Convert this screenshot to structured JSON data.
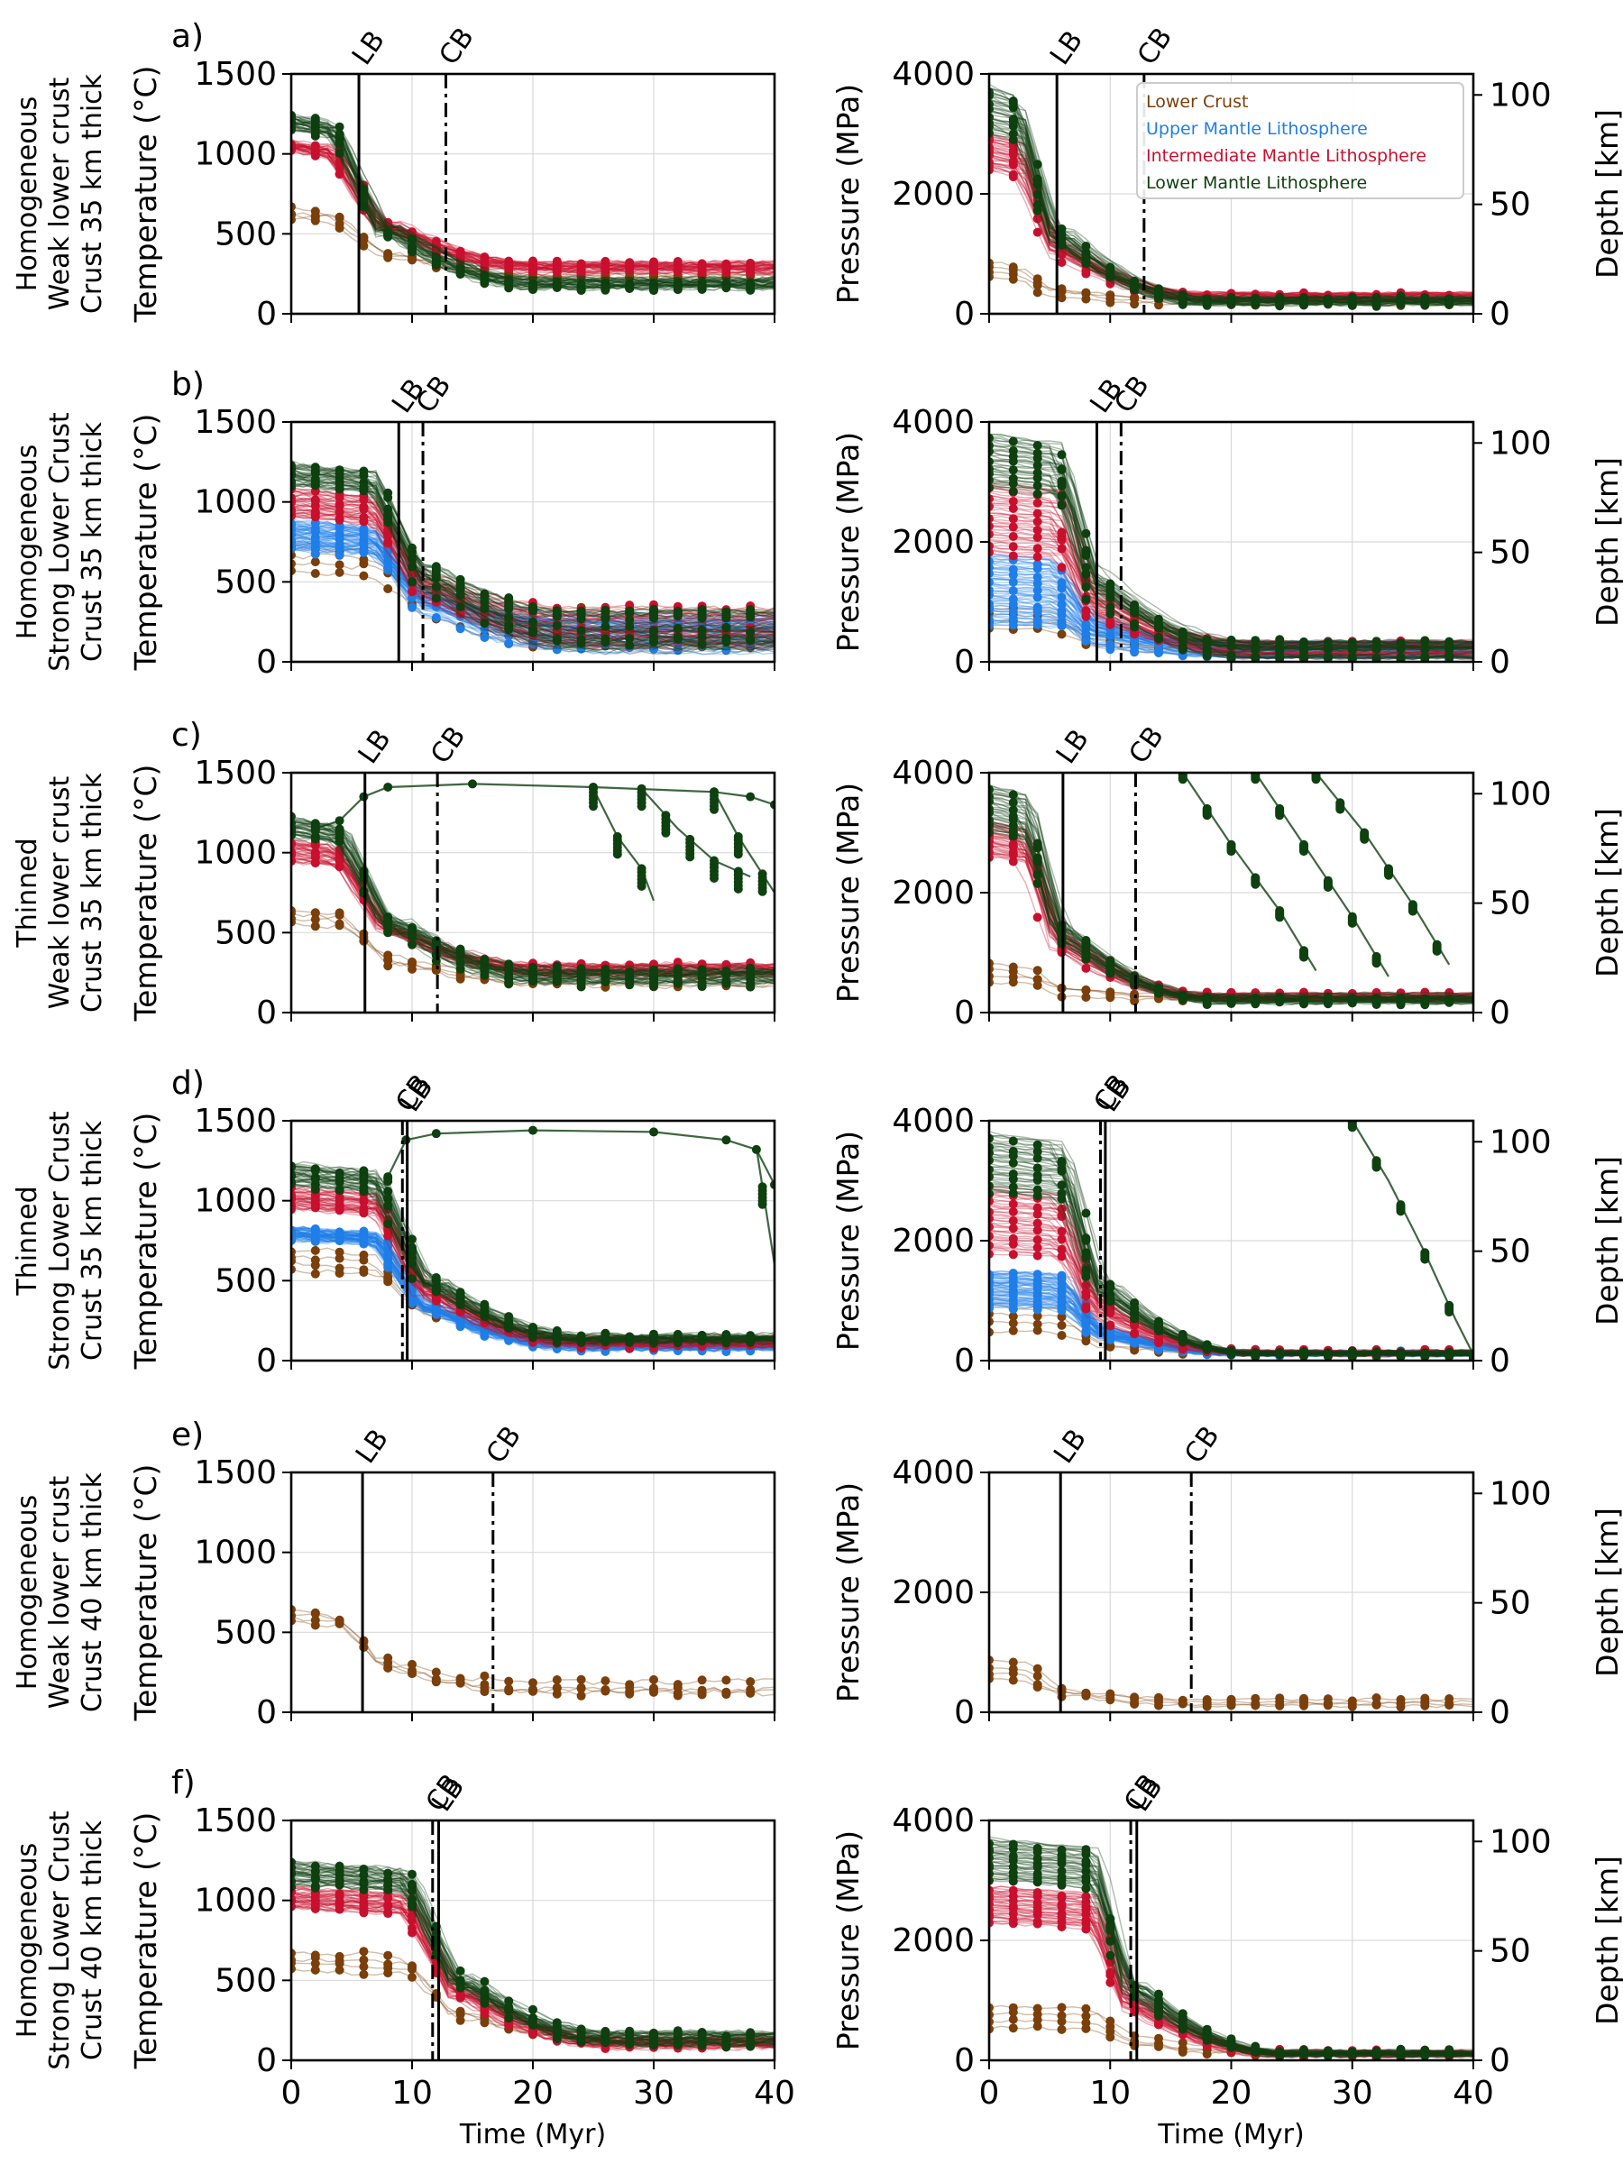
{
  "colors": {
    "lower_crust": "#7a3f0a",
    "upper_mantle": "#1f7ee8",
    "intermediate_mantle": "#c8102e",
    "lower_mantle": "#0f4010"
  },
  "axes_text": {
    "temperature_ylabel": "Temperature (°C)",
    "pressure_ylabel": "Pressure (MPa)",
    "depth_ylabel": "Depth [km]",
    "xlabel": "Time (Myr)",
    "lb_tag": "LB",
    "cb_tag": "CB"
  },
  "legend": {
    "placement": "upper right of panel a pressure plot",
    "entries": [
      {
        "label": "Lower Crust",
        "color": "#7a3f0a"
      },
      {
        "label": "Upper Mantle Lithosphere",
        "color": "#1f7ee8"
      },
      {
        "label": "Intermediate Mantle Lithosphere",
        "color": "#c8102e"
      },
      {
        "label": "Lower Mantle Lithosphere",
        "color": "#0f4010"
      }
    ]
  },
  "chart_data": [
    {
      "type": "line",
      "panel": "a)",
      "row_label": [
        "Homogeneous",
        "Weak lower crust",
        "Crust 35 km thick"
      ],
      "xlim": [
        0,
        40
      ],
      "temp_ylim": [
        0,
        1500
      ],
      "pres_ylim": [
        0,
        4000
      ],
      "depth_ticks": [
        0,
        50,
        100
      ],
      "lb": 5.6,
      "cb": 12.8,
      "series": [
        "lower_crust",
        "intermediate_mantle",
        "lower_mantle"
      ],
      "temp_start": {
        "lower_crust": [
          650,
          600,
          560
        ],
        "upper_mantle": null,
        "intermediate_mantle": [
          1020,
          1080
        ],
        "lower_mantle": [
          1150,
          1240
        ]
      },
      "temp_end": {
        "lower_crust": [
          200,
          260
        ],
        "upper_mantle": null,
        "intermediate_mantle": [
          260,
          320
        ],
        "lower_mantle": [
          160,
          220
        ]
      },
      "pres_start": {
        "lower_crust": [
          850,
          600
        ],
        "upper_mantle": null,
        "intermediate_mantle": [
          2400,
          3000
        ],
        "lower_mantle": [
          3000,
          3800
        ]
      },
      "pres_end": {
        "lower_crust": [
          150,
          250
        ],
        "upper_mantle": null,
        "intermediate_mantle": [
          200,
          350
        ],
        "lower_mantle": [
          150,
          280
        ]
      }
    },
    {
      "type": "line",
      "panel": "b)",
      "row_label": [
        "Homogeneous",
        "Strong Lower Crust",
        "Crust 35 km thick"
      ],
      "xlim": [
        0,
        40
      ],
      "temp_ylim": [
        0,
        1500
      ],
      "pres_ylim": [
        0,
        4000
      ],
      "depth_ticks": [
        0,
        50,
        100
      ],
      "lb": 8.9,
      "cb": 10.9,
      "series": [
        "lower_crust",
        "upper_mantle",
        "intermediate_mantle",
        "lower_mantle"
      ],
      "temp_start": {
        "lower_crust": [
          560,
          720
        ],
        "upper_mantle": [
          700,
          880
        ],
        "intermediate_mantle": [
          900,
          1080
        ],
        "lower_mantle": [
          1100,
          1240
        ]
      },
      "temp_end": {
        "lower_crust": [
          40,
          330
        ],
        "upper_mantle": [
          60,
          300
        ],
        "intermediate_mantle": [
          80,
          340
        ],
        "lower_mantle": [
          60,
          320
        ]
      },
      "pres_start": {
        "lower_crust": [
          550,
          900
        ],
        "upper_mantle": [
          600,
          1800
        ],
        "intermediate_mantle": [
          1800,
          3000
        ],
        "lower_mantle": [
          2900,
          3800
        ]
      },
      "pres_end": {
        "lower_crust": [
          60,
          330
        ],
        "upper_mantle": [
          60,
          350
        ],
        "intermediate_mantle": [
          60,
          350
        ],
        "lower_mantle": [
          60,
          350
        ]
      }
    },
    {
      "type": "line",
      "panel": "c)",
      "row_label": [
        "Thinned",
        "Weak lower crust",
        "Crust 35 km thick"
      ],
      "xlim": [
        0,
        40
      ],
      "temp_ylim": [
        0,
        1500
      ],
      "pres_ylim": [
        0,
        4000
      ],
      "depth_ticks": [
        0,
        50,
        100
      ],
      "lb": 6.1,
      "cb": 12.1,
      "series": [
        "lower_crust",
        "intermediate_mantle",
        "lower_mantle"
      ],
      "temp_start": {
        "lower_crust": [
          560,
          650
        ],
        "upper_mantle": null,
        "intermediate_mantle": [
          950,
          1080
        ],
        "lower_mantle": [
          1100,
          1220
        ]
      },
      "temp_end": {
        "lower_crust": [
          160,
          240
        ],
        "upper_mantle": null,
        "intermediate_mantle": [
          230,
          300
        ],
        "lower_mantle": [
          180,
          280
        ]
      },
      "pres_start": {
        "lower_crust": [
          500,
          800
        ],
        "upper_mantle": null,
        "intermediate_mantle": [
          2600,
          3200
        ],
        "lower_mantle": [
          3000,
          3800
        ]
      },
      "pres_end": {
        "lower_crust": [
          150,
          280
        ],
        "upper_mantle": null,
        "intermediate_mantle": [
          200,
          320
        ],
        "lower_mantle": [
          150,
          320
        ]
      },
      "hot_path_temp": [
        [
          2,
          1150
        ],
        [
          4,
          1200
        ],
        [
          6,
          1350
        ],
        [
          8,
          1410
        ],
        [
          15,
          1430
        ],
        [
          25,
          1410
        ],
        [
          35,
          1380
        ],
        [
          38,
          1350
        ],
        [
          40,
          1300
        ]
      ],
      "escape_temp": [
        [
          [
            25,
            1400
          ],
          [
            27,
            1100
          ],
          [
            29,
            900
          ],
          [
            30,
            700
          ]
        ],
        [
          [
            29,
            1400
          ],
          [
            32,
            1150
          ],
          [
            35,
            950
          ],
          [
            38,
            850
          ]
        ],
        [
          [
            35,
            1380
          ],
          [
            37,
            1100
          ],
          [
            40,
            750
          ]
        ]
      ],
      "escape_pres": [
        [
          [
            16,
            4000
          ],
          [
            20,
            2800
          ],
          [
            24,
            1700
          ],
          [
            27,
            700
          ]
        ],
        [
          [
            22,
            4000
          ],
          [
            26,
            2800
          ],
          [
            30,
            1600
          ],
          [
            33,
            600
          ]
        ],
        [
          [
            27,
            4000
          ],
          [
            31,
            3000
          ],
          [
            35,
            1800
          ],
          [
            38,
            800
          ]
        ]
      ]
    },
    {
      "type": "line",
      "panel": "d)",
      "row_label": [
        "Thinned",
        "Strong Lower Crust",
        "Crust 35 km thick"
      ],
      "xlim": [
        0,
        40
      ],
      "temp_ylim": [
        0,
        1500
      ],
      "pres_ylim": [
        0,
        4000
      ],
      "depth_ticks": [
        0,
        50,
        100
      ],
      "lb": 9.6,
      "cb": 9.2,
      "series": [
        "lower_crust",
        "upper_mantle",
        "intermediate_mantle",
        "lower_mantle"
      ],
      "temp_start": {
        "lower_crust": [
          560,
          700
        ],
        "upper_mantle": [
          760,
          830
        ],
        "intermediate_mantle": [
          950,
          1080
        ],
        "lower_mantle": [
          1100,
          1230
        ]
      },
      "temp_end": {
        "lower_crust": [
          120,
          160
        ],
        "upper_mantle": [
          70,
          110
        ],
        "intermediate_mantle": [
          90,
          140
        ],
        "lower_mantle": [
          110,
          160
        ]
      },
      "pres_start": {
        "lower_crust": [
          500,
          900
        ],
        "upper_mantle": [
          900,
          1500
        ],
        "intermediate_mantle": [
          1800,
          2900
        ],
        "lower_mantle": [
          2800,
          3800
        ]
      },
      "pres_end": {
        "lower_crust": [
          90,
          160
        ],
        "upper_mantle": [
          90,
          160
        ],
        "intermediate_mantle": [
          90,
          160
        ],
        "lower_mantle": [
          90,
          160
        ]
      },
      "hot_path_temp": [
        [
          8,
          1150
        ],
        [
          9.5,
          1380
        ],
        [
          12,
          1420
        ],
        [
          20,
          1440
        ],
        [
          30,
          1430
        ],
        [
          36,
          1380
        ],
        [
          38.5,
          1320
        ],
        [
          40,
          1100
        ]
      ],
      "escape_temp": [
        [
          [
            38.5,
            1330
          ],
          [
            40,
            600
          ]
        ]
      ],
      "escape_pres": [
        [
          [
            30,
            4000
          ],
          [
            33,
            3000
          ],
          [
            36,
            1800
          ],
          [
            38.5,
            700
          ],
          [
            40,
            100
          ]
        ]
      ]
    },
    {
      "type": "line",
      "panel": "e)",
      "row_label": [
        "Homogeneous",
        "Weak lower crust",
        "Crust 40 km thick"
      ],
      "xlim": [
        0,
        40
      ],
      "temp_ylim": [
        0,
        1500
      ],
      "pres_ylim": [
        0,
        4000
      ],
      "depth_ticks": [
        0,
        50,
        100
      ],
      "lb": 5.9,
      "cb": 16.7,
      "series": [
        "lower_crust"
      ],
      "temp_start": {
        "lower_crust": [
          560,
          640
        ]
      },
      "temp_end": {
        "lower_crust": [
          120,
          220
        ]
      },
      "pres_start": {
        "lower_crust": [
          550,
          850
        ]
      },
      "pres_end": {
        "lower_crust": [
          100,
          220
        ]
      }
    },
    {
      "type": "line",
      "panel": "f)",
      "row_label": [
        "Homogeneous",
        "Strong Lower Crust",
        "Crust 40 km thick"
      ],
      "xlim": [
        0,
        40
      ],
      "temp_ylim": [
        0,
        1500
      ],
      "pres_ylim": [
        0,
        4000
      ],
      "depth_ticks": [
        0,
        50,
        100
      ],
      "lb": 12.2,
      "cb": 11.7,
      "series": [
        "lower_crust",
        "intermediate_mantle",
        "lower_mantle"
      ],
      "temp_start": {
        "lower_crust": [
          560,
          680
        ]
      },
      "temp_end": {
        "lower_crust": [
          60,
          180
        ],
        "intermediate_mantle": [
          80,
          150
        ],
        "lower_mantle": [
          100,
          180
        ]
      },
      "pres_start": {
        "lower_crust": [
          550,
          900
        ],
        "intermediate_mantle": [
          2300,
          2900
        ],
        "lower_mantle": [
          3000,
          3700
        ]
      },
      "pres_end": {
        "lower_crust": [
          60,
          160
        ],
        "intermediate_mantle": [
          60,
          160
        ],
        "lower_mantle": [
          60,
          160
        ]
      }
    }
  ]
}
